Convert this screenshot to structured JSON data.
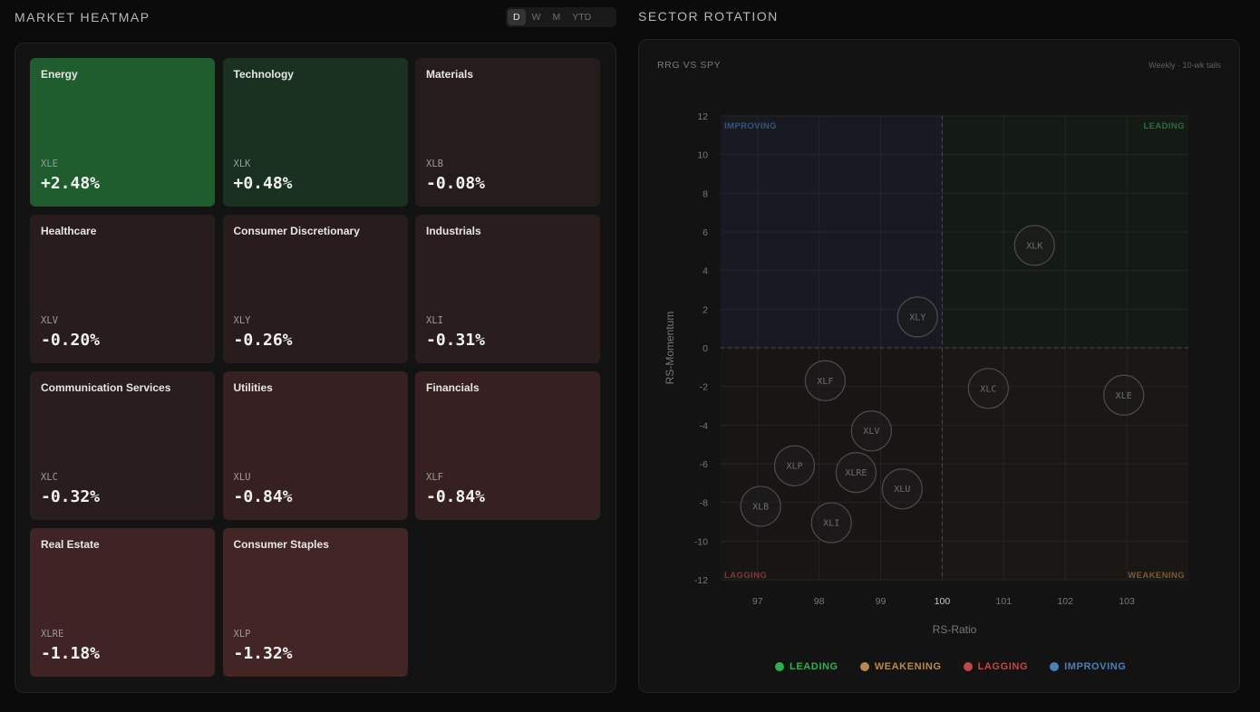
{
  "heatmap": {
    "title": "MARKET HEATMAP",
    "periods": [
      "D",
      "W",
      "M",
      "YTD"
    ],
    "active_period": "D",
    "tiles": [
      {
        "name": "Energy",
        "ticker": "XLE",
        "change": "+2.48%",
        "color": "#1f5c2e"
      },
      {
        "name": "Technology",
        "ticker": "XLK",
        "change": "+0.48%",
        "color": "#1a3121"
      },
      {
        "name": "Materials",
        "ticker": "XLB",
        "change": "-0.08%",
        "color": "#271c1c"
      },
      {
        "name": "Healthcare",
        "ticker": "XLV",
        "change": "-0.20%",
        "color": "#281c1c"
      },
      {
        "name": "Consumer Discretionary",
        "ticker": "XLY",
        "change": "-0.26%",
        "color": "#291c1c"
      },
      {
        "name": "Industrials",
        "ticker": "XLI",
        "change": "-0.31%",
        "color": "#2a1d1d"
      },
      {
        "name": "Communication Services",
        "ticker": "XLC",
        "change": "-0.32%",
        "color": "#2a1d1d"
      },
      {
        "name": "Utilities",
        "ticker": "XLU",
        "change": "-0.84%",
        "color": "#372021"
      },
      {
        "name": "Financials",
        "ticker": "XLF",
        "change": "-0.84%",
        "color": "#372021"
      },
      {
        "name": "Real Estate",
        "ticker": "XLRE",
        "change": "-1.18%",
        "color": "#402324"
      },
      {
        "name": "Consumer Staples",
        "ticker": "XLP",
        "change": "-1.32%",
        "color": "#442526"
      }
    ]
  },
  "rotation": {
    "title": "SECTOR ROTATION",
    "chart_title": "RRG VS SPY",
    "chart_subtitle": "Weekly · 10-wk tails",
    "chart_data": {
      "type": "scatter",
      "xlabel": "RS-Ratio",
      "ylabel": "RS-Momentum",
      "xlim": [
        96.4,
        104
      ],
      "ylim": [
        -12,
        12
      ],
      "x_ticks": [
        97,
        98,
        99,
        100,
        101,
        102,
        103
      ],
      "y_ticks": [
        12,
        10,
        8,
        6,
        4,
        2,
        0,
        -2,
        -4,
        -6,
        -8,
        -10,
        -12
      ],
      "x_center": 100,
      "y_center": 0,
      "quadrants": {
        "improving": "IMPROVING",
        "leading": "LEADING",
        "lagging": "LAGGING",
        "weakening": "WEAKENING"
      },
      "points": [
        {
          "label": "XLK",
          "x": 101.5,
          "y": 5.3
        },
        {
          "label": "XLY",
          "x": 99.6,
          "y": 1.6
        },
        {
          "label": "XLF",
          "x": 98.1,
          "y": -1.7
        },
        {
          "label": "XLC",
          "x": 100.75,
          "y": -2.1
        },
        {
          "label": "XLE",
          "x": 102.95,
          "y": -2.45
        },
        {
          "label": "XLV",
          "x": 98.85,
          "y": -4.3
        },
        {
          "label": "XLP",
          "x": 97.6,
          "y": -6.1
        },
        {
          "label": "XLRE",
          "x": 98.6,
          "y": -6.45
        },
        {
          "label": "XLU",
          "x": 99.35,
          "y": -7.3
        },
        {
          "label": "XLB",
          "x": 97.05,
          "y": -8.2
        },
        {
          "label": "XLI",
          "x": 98.2,
          "y": -9.05
        }
      ]
    },
    "legend": [
      {
        "label": "LEADING",
        "color": "#2fae52"
      },
      {
        "label": "WEAKENING",
        "color": "#b8894a"
      },
      {
        "label": "LAGGING",
        "color": "#c24848"
      },
      {
        "label": "IMPROVING",
        "color": "#4a7fb8"
      }
    ]
  }
}
